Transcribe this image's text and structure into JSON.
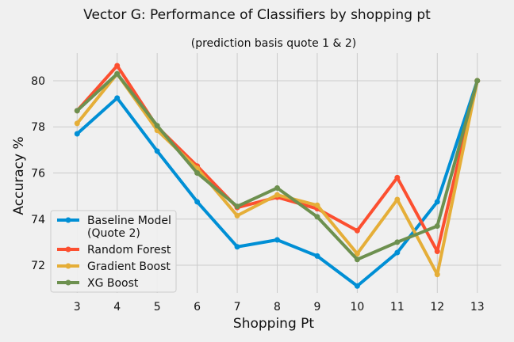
{
  "chart_data": {
    "type": "line",
    "title": "Vector G: Performance of Classifiers by shopping pt",
    "subtitle": "(prediction basis quote 1 & 2)",
    "xlabel": "Shopping Pt",
    "ylabel": "Accuracy %",
    "x": [
      3,
      4,
      5,
      6,
      7,
      8,
      9,
      10,
      11,
      12,
      13
    ],
    "xlim": [
      2.4,
      13.6
    ],
    "ylim": [
      70.8,
      81.2
    ],
    "yticks": [
      72,
      74,
      76,
      78,
      80
    ],
    "grid": true,
    "legend_position": "lower-left",
    "series": [
      {
        "name": [
          "Baseline Model",
          "(Quote 2)"
        ],
        "color": "#008fd5",
        "values": [
          77.7,
          79.25,
          76.95,
          74.75,
          72.8,
          73.1,
          72.4,
          71.1,
          72.55,
          74.75,
          80.0
        ]
      },
      {
        "name": [
          "Random Forest"
        ],
        "color": "#fc4f30",
        "values": [
          78.7,
          80.65,
          78.0,
          76.3,
          74.5,
          74.95,
          74.45,
          73.5,
          75.8,
          72.6,
          80.0
        ]
      },
      {
        "name": [
          "Gradient Boost"
        ],
        "color": "#e5ae38",
        "values": [
          78.15,
          80.3,
          77.85,
          76.2,
          74.15,
          75.05,
          74.6,
          72.5,
          74.85,
          71.6,
          80.0
        ]
      },
      {
        "name": [
          "XG Boost"
        ],
        "color": "#6d904f",
        "values": [
          78.7,
          80.3,
          78.05,
          76.0,
          74.55,
          75.35,
          74.1,
          72.25,
          73.0,
          73.7,
          80.0
        ]
      }
    ]
  }
}
